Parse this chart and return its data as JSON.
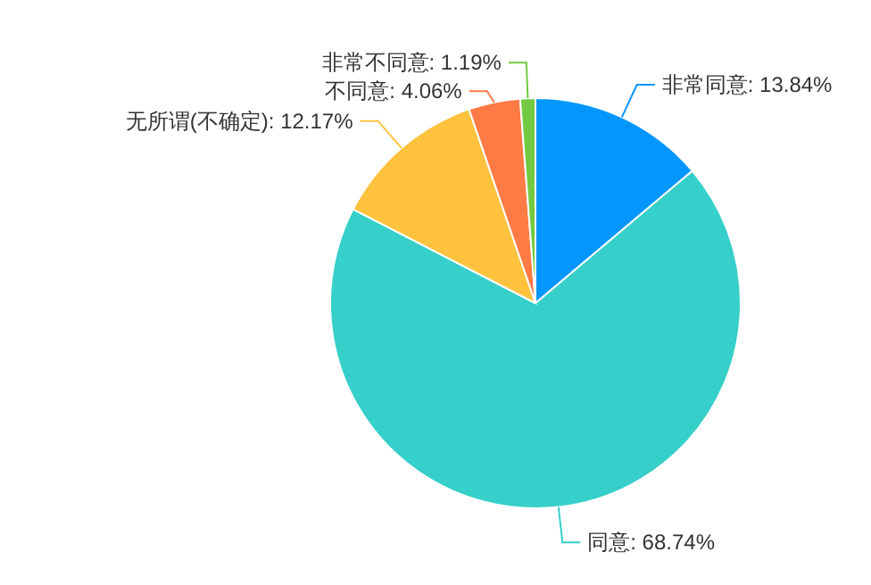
{
  "chart_data": {
    "type": "pie",
    "categories": [
      "非常同意",
      "同意",
      "无所谓(不确定)",
      "不同意",
      "非常不同意"
    ],
    "values": [
      13.84,
      68.74,
      12.17,
      4.06,
      1.19
    ],
    "value_labels": [
      "13.84%",
      "68.74%",
      "12.17%",
      "4.06%",
      "1.19%"
    ],
    "colors": [
      "#0396ff",
      "#36cfc9",
      "#ffc23d",
      "#ff7a45",
      "#73c940"
    ]
  }
}
